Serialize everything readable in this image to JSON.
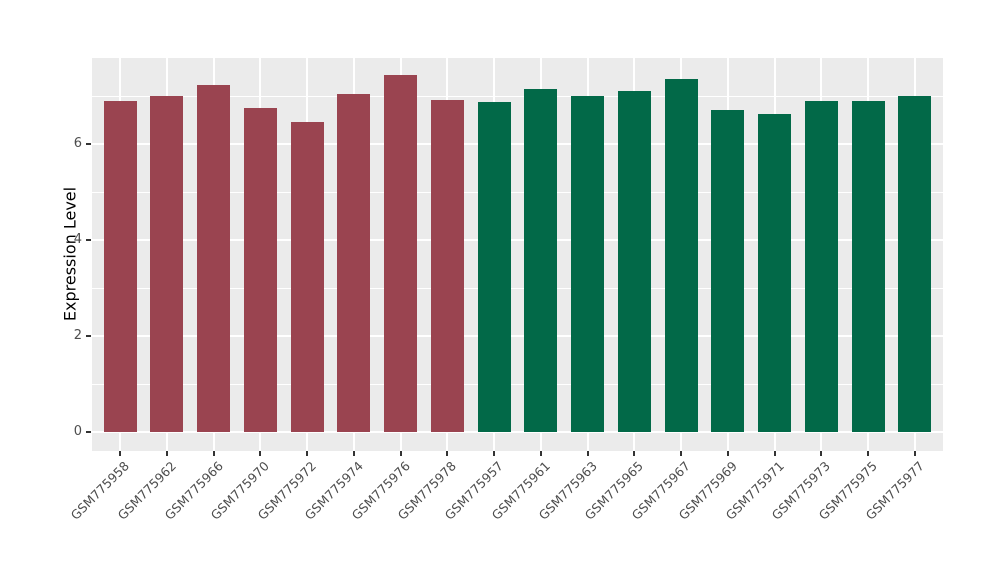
{
  "chart_data": {
    "type": "bar",
    "title": "",
    "xlabel": "",
    "ylabel": "Expression Level",
    "y_ticks": [
      0,
      2,
      4,
      6
    ],
    "y_minor_ticks": [
      1,
      3,
      5,
      7
    ],
    "ylim": [
      -0.37,
      7.81
    ],
    "grid": "white major and minor horizontal lines plus vertical major lines on gray panel",
    "legend_position": "none",
    "x_tick_rotation_deg": 45,
    "panel_bg_color": "#EBEBEB",
    "grid_color": "#FFFFFF",
    "tick_text_color": "#4D4D4D",
    "group_colors": {
      "left_group_maroon": "#9A4450",
      "right_group_green": "#026948"
    },
    "bars": [
      {
        "category": "GSM775958",
        "value": 6.9,
        "color": "#9A4450"
      },
      {
        "category": "GSM775962",
        "value": 7.01,
        "color": "#9A4450"
      },
      {
        "category": "GSM775966",
        "value": 7.23,
        "color": "#9A4450"
      },
      {
        "category": "GSM775970",
        "value": 6.76,
        "color": "#9A4450"
      },
      {
        "category": "GSM775972",
        "value": 6.46,
        "color": "#9A4450"
      },
      {
        "category": "GSM775974",
        "value": 7.04,
        "color": "#9A4450"
      },
      {
        "category": "GSM775976",
        "value": 7.44,
        "color": "#9A4450"
      },
      {
        "category": "GSM775978",
        "value": 6.92,
        "color": "#9A4450"
      },
      {
        "category": "GSM775957",
        "value": 6.87,
        "color": "#026948"
      },
      {
        "category": "GSM775961",
        "value": 7.15,
        "color": "#026948"
      },
      {
        "category": "GSM775963",
        "value": 7.01,
        "color": "#026948"
      },
      {
        "category": "GSM775965",
        "value": 7.1,
        "color": "#026948"
      },
      {
        "category": "GSM775967",
        "value": 7.35,
        "color": "#026948"
      },
      {
        "category": "GSM775969",
        "value": 6.71,
        "color": "#026948"
      },
      {
        "category": "GSM775971",
        "value": 6.62,
        "color": "#026948"
      },
      {
        "category": "GSM775973",
        "value": 6.9,
        "color": "#026948"
      },
      {
        "category": "GSM775975",
        "value": 6.89,
        "color": "#026948"
      },
      {
        "category": "GSM775977",
        "value": 6.99,
        "color": "#026948"
      }
    ]
  }
}
